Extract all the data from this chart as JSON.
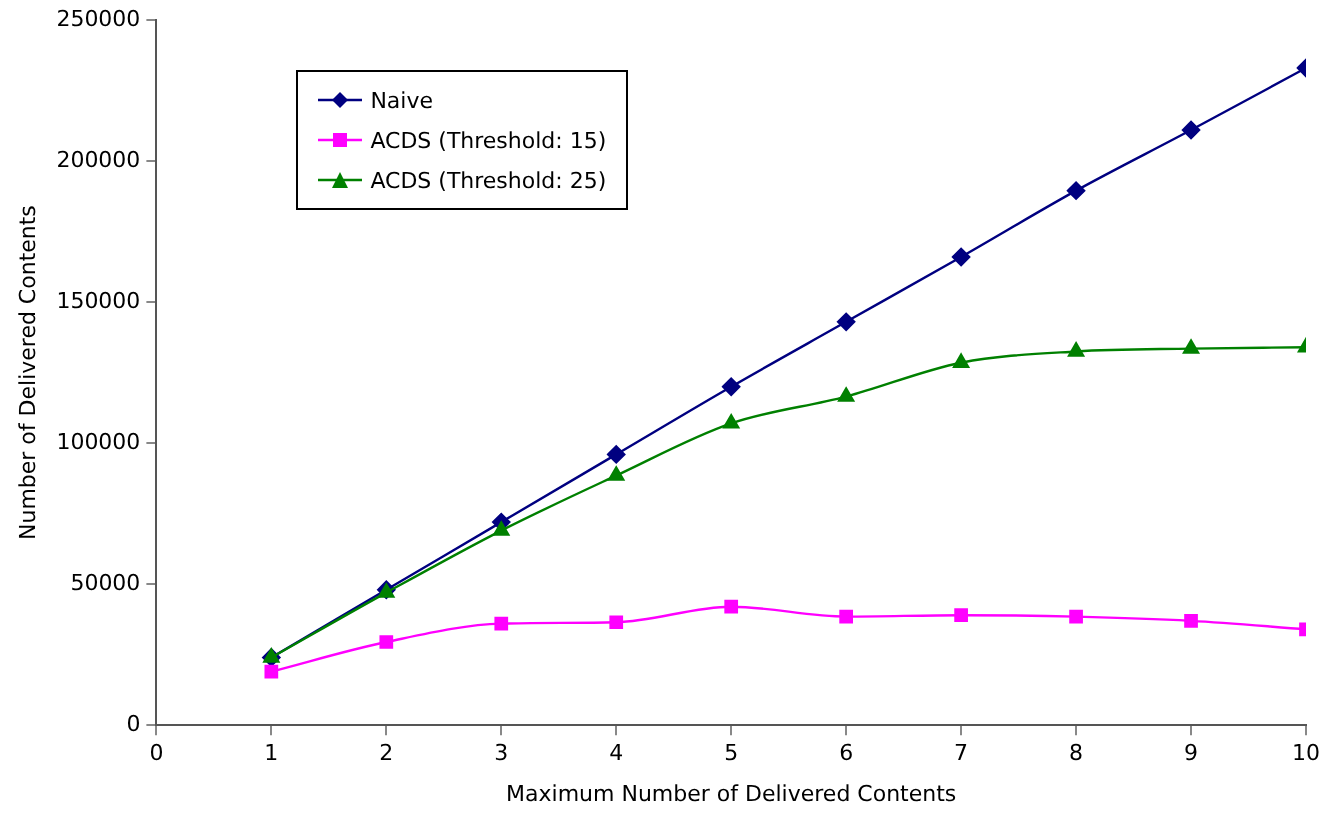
{
  "chart_data": {
    "type": "line",
    "xlabel": "Maximum Number of Delivered Contents",
    "ylabel": "Number of Delivered Contents",
    "x": [
      1,
      2,
      3,
      4,
      5,
      6,
      7,
      8,
      9,
      10
    ],
    "series": [
      {
        "name": "Naive",
        "color": "#000080",
        "marker": "diamond",
        "values": [
          24000,
          48000,
          72000,
          96000,
          120000,
          143000,
          166000,
          189500,
          211000,
          233000
        ]
      },
      {
        "name": "ACDS (Threshold: 15)",
        "color": "#ff00ff",
        "marker": "square",
        "values": [
          19000,
          29500,
          36000,
          36500,
          42000,
          38500,
          39000,
          38500,
          37000,
          34000
        ]
      },
      {
        "name": "ACDS (Threshold: 25)",
        "color": "#008000",
        "marker": "triangle",
        "values": [
          24000,
          47000,
          69000,
          88500,
          107000,
          116500,
          128500,
          132500,
          133500,
          134000
        ]
      }
    ],
    "xlim": [
      0,
      10
    ],
    "xticks": [
      0,
      1,
      2,
      3,
      4,
      5,
      6,
      7,
      8,
      9,
      10
    ],
    "ylim": [
      0,
      250000
    ],
    "yticks": [
      0,
      50000,
      100000,
      150000,
      200000,
      250000
    ],
    "grid": false,
    "legend": "top left",
    "line_style": "solid"
  }
}
